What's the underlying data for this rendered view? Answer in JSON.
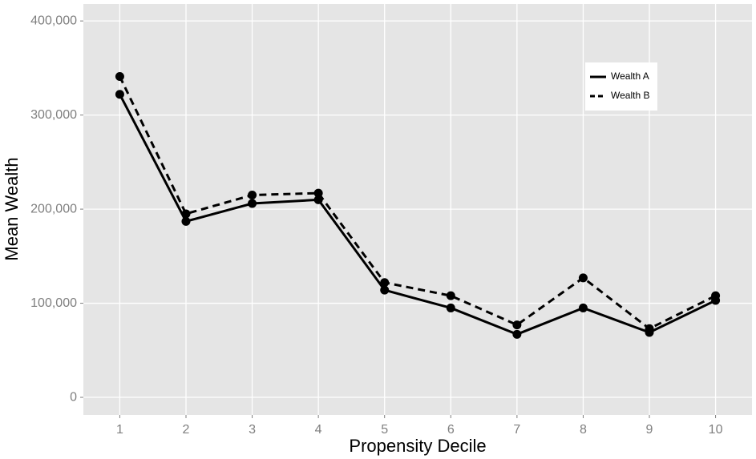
{
  "chart_data": {
    "type": "line",
    "x_label": "Propensity Decile",
    "y_label": "Mean Wealth",
    "x": [
      1,
      2,
      3,
      4,
      5,
      6,
      7,
      8,
      9,
      10
    ],
    "series": [
      {
        "name": "Wealth A",
        "color": "#000000",
        "dash": "solid",
        "values": [
          322000,
          187000,
          206000,
          210000,
          114000,
          95000,
          67000,
          95000,
          69000,
          103000
        ]
      },
      {
        "name": "Wealth B",
        "color": "#000000",
        "dash": "dashed",
        "values": [
          341000,
          195000,
          215000,
          217000,
          122000,
          108000,
          77000,
          127000,
          73000,
          108000
        ]
      }
    ],
    "xlim": [
      0.45,
      10.55
    ],
    "xticks": [
      1,
      2,
      3,
      4,
      5,
      6,
      7,
      8,
      9,
      10
    ],
    "ylim": [
      -18700,
      418000
    ],
    "yticks": [
      0,
      {
        "value": 100000,
        "label": "100,000"
      },
      {
        "value": 200000,
        "label": "200,000"
      },
      {
        "value": 300000,
        "label": "300,000"
      },
      {
        "value": 400000,
        "label": "400,000"
      }
    ],
    "grid": true,
    "legend": "top-right"
  }
}
